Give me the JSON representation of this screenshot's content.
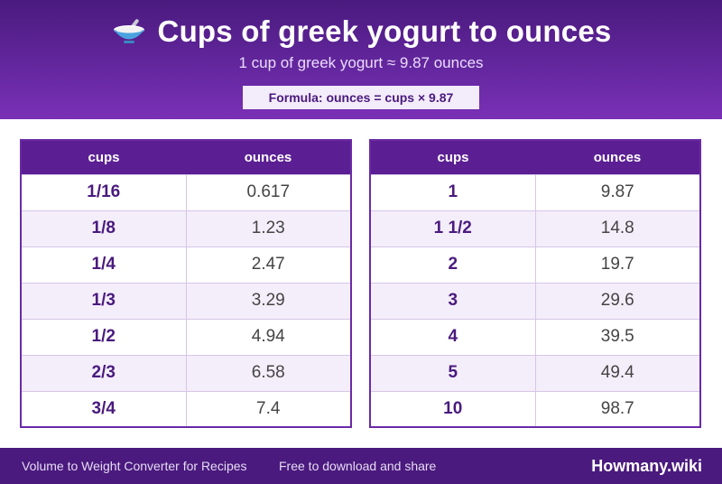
{
  "header": {
    "title": "Cups of greek yogurt to ounces",
    "subtitle": "1 cup of greek yogurt ≈ 9.87 ounces",
    "formula": "Formula: ounces = cups × 9.87",
    "icon": "bowl-with-spoon-icon"
  },
  "tables": {
    "left": {
      "headers": {
        "cups": "cups",
        "ounces": "ounces"
      },
      "rows": [
        {
          "cups": "1/16",
          "ounces": "0.617"
        },
        {
          "cups": "1/8",
          "ounces": "1.23"
        },
        {
          "cups": "1/4",
          "ounces": "2.47"
        },
        {
          "cups": "1/3",
          "ounces": "3.29"
        },
        {
          "cups": "1/2",
          "ounces": "4.94"
        },
        {
          "cups": "2/3",
          "ounces": "6.58"
        },
        {
          "cups": "3/4",
          "ounces": "7.4"
        }
      ]
    },
    "right": {
      "headers": {
        "cups": "cups",
        "ounces": "ounces"
      },
      "rows": [
        {
          "cups": "1",
          "ounces": "9.87"
        },
        {
          "cups": "1 1/2",
          "ounces": "14.8"
        },
        {
          "cups": "2",
          "ounces": "19.7"
        },
        {
          "cups": "3",
          "ounces": "29.6"
        },
        {
          "cups": "4",
          "ounces": "39.5"
        },
        {
          "cups": "5",
          "ounces": "49.4"
        },
        {
          "cups": "10",
          "ounces": "98.7"
        }
      ]
    }
  },
  "footer": {
    "left": "Volume to Weight Converter for Recipes",
    "middle": "Free to download and share",
    "brand": "Howmany.wiki"
  },
  "colors": {
    "header_dark": "#4a1a7e",
    "header_light": "#7a30b6",
    "table_header": "#5b1f93",
    "row_alt": "#f4eefb"
  }
}
